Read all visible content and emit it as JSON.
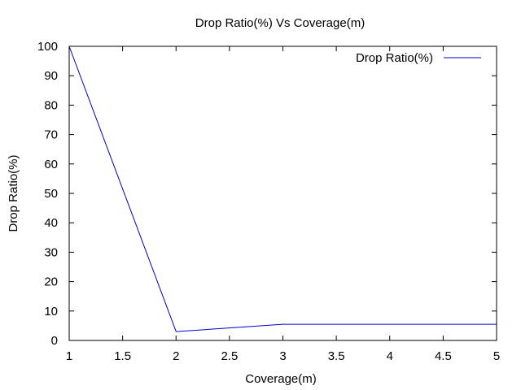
{
  "chart_data": {
    "type": "line",
    "title": "Drop Ratio(%) Vs Coverage(m)",
    "xlabel": "Coverage(m)",
    "ylabel": "Drop Ratio(%)",
    "xlim": [
      1,
      5
    ],
    "ylim": [
      0,
      100
    ],
    "xticks": [
      1,
      1.5,
      2,
      2.5,
      3,
      3.5,
      4,
      4.5,
      5
    ],
    "xtick_labels": [
      "1",
      "1.5",
      "2",
      "2.5",
      "3",
      "3.5",
      "4",
      "4.5",
      "5"
    ],
    "yticks": [
      0,
      10,
      20,
      30,
      40,
      50,
      60,
      70,
      80,
      90,
      100
    ],
    "ytick_labels": [
      "0",
      "10",
      "20",
      "30",
      "40",
      "50",
      "60",
      "70",
      "80",
      "90",
      "100"
    ],
    "grid": false,
    "legend_position": "top-right",
    "series": [
      {
        "name": "Drop Ratio(%)",
        "color": "#0000cc",
        "x": [
          1,
          2,
          3,
          4,
          5
        ],
        "y": [
          100,
          3,
          5.5,
          5.5,
          5.5
        ]
      }
    ]
  }
}
